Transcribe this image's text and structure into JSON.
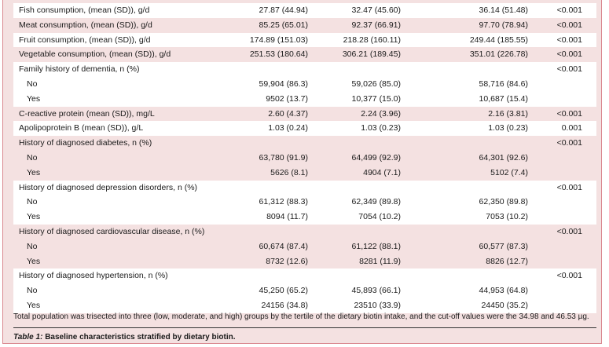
{
  "groups": [
    {
      "rows": [
        {
          "label": "Fish consumption, (mean (SD)), g/d",
          "v": [
            "27.87 (44.94)",
            "32.47 (45.60)",
            "36.14 (51.48)"
          ],
          "p": "<0.001"
        }
      ]
    },
    {
      "rows": [
        {
          "label": "Meat consumption, (mean (SD)), g/d",
          "v": [
            "85.25 (65.01)",
            "92.37 (66.91)",
            "97.70 (78.94)"
          ],
          "p": "<0.001"
        }
      ]
    },
    {
      "rows": [
        {
          "label": "Fruit consumption, (mean (SD)), g/d",
          "v": [
            "174.89 (151.03)",
            "218.28 (160.11)",
            "249.44 (185.55)"
          ],
          "p": "<0.001"
        }
      ]
    },
    {
      "rows": [
        {
          "label": "Vegetable consumption, (mean (SD)), g/d",
          "v": [
            "251.53 (180.64)",
            "306.21 (189.45)",
            "351.01 (226.78)"
          ],
          "p": "<0.001"
        }
      ]
    },
    {
      "rows": [
        {
          "label": "Family history of dementia, n (%)",
          "v": [
            "",
            "",
            ""
          ],
          "p": "<0.001"
        },
        {
          "label": "No",
          "v": [
            "59,904 (86.3)",
            "59,026 (85.0)",
            "58,716 (84.6)"
          ],
          "p": ""
        },
        {
          "label": "Yes",
          "v": [
            "9502 (13.7)",
            "10,377 (15.0)",
            "10,687 (15.4)"
          ],
          "p": ""
        }
      ]
    },
    {
      "rows": [
        {
          "label": "C-reactive protein (mean (SD)), mg/L",
          "v": [
            "2.60 (4.37)",
            "2.24 (3.96)",
            "2.16 (3.81)"
          ],
          "p": "<0.001"
        }
      ]
    },
    {
      "rows": [
        {
          "label": "Apolipoprotein B (mean (SD)), g/L",
          "v": [
            "1.03 (0.24)",
            "1.03 (0.23)",
            "1.03 (0.23)"
          ],
          "p": "0.001"
        }
      ]
    },
    {
      "rows": [
        {
          "label": "History of diagnosed diabetes, n (%)",
          "v": [
            "",
            "",
            ""
          ],
          "p": "<0.001"
        },
        {
          "label": "No",
          "v": [
            "63,780 (91.9)",
            "64,499 (92.9)",
            "64,301 (92.6)"
          ],
          "p": ""
        },
        {
          "label": "Yes",
          "v": [
            "5626 (8.1)",
            "4904 (7.1)",
            "5102 (7.4)"
          ],
          "p": ""
        }
      ]
    },
    {
      "rows": [
        {
          "label": "History of diagnosed depression disorders, n (%)",
          "v": [
            "",
            "",
            ""
          ],
          "p": "<0.001"
        },
        {
          "label": "No",
          "v": [
            "61,312 (88.3)",
            "62,349 (89.8)",
            "62,350 (89.8)"
          ],
          "p": ""
        },
        {
          "label": "Yes",
          "v": [
            "8094 (11.7)",
            "7054 (10.2)",
            "7053 (10.2)"
          ],
          "p": ""
        }
      ]
    },
    {
      "rows": [
        {
          "label": "History of diagnosed cardiovascular disease, n (%)",
          "v": [
            "",
            "",
            ""
          ],
          "p": "<0.001"
        },
        {
          "label": "No",
          "v": [
            "60,674 (87.4)",
            "61,122 (88.1)",
            "60,577 (87.3)"
          ],
          "p": ""
        },
        {
          "label": "Yes",
          "v": [
            "8732 (12.6)",
            "8281 (11.9)",
            "8826 (12.7)"
          ],
          "p": ""
        }
      ]
    },
    {
      "rows": [
        {
          "label": "History of diagnosed hypertension, n (%)",
          "v": [
            "",
            "",
            ""
          ],
          "p": "<0.001"
        },
        {
          "label": "No",
          "v": [
            "45,250 (65.2)",
            "45,893 (66.1)",
            "44,953 (64.8)"
          ],
          "p": ""
        },
        {
          "label": "Yes",
          "v": [
            "24156 (34.8)",
            "23510 (33.9)",
            "24450 (35.2)"
          ],
          "p": ""
        }
      ]
    }
  ],
  "footnote": "Total population was trisected into three (low, moderate, and high) groups by the tertile of the dietary biotin intake, and the cut-off values were the 34.98 and 46.53 µg.",
  "caption": {
    "label": "Table 1:",
    "text": " Baseline characteristics stratified by dietary biotin."
  }
}
